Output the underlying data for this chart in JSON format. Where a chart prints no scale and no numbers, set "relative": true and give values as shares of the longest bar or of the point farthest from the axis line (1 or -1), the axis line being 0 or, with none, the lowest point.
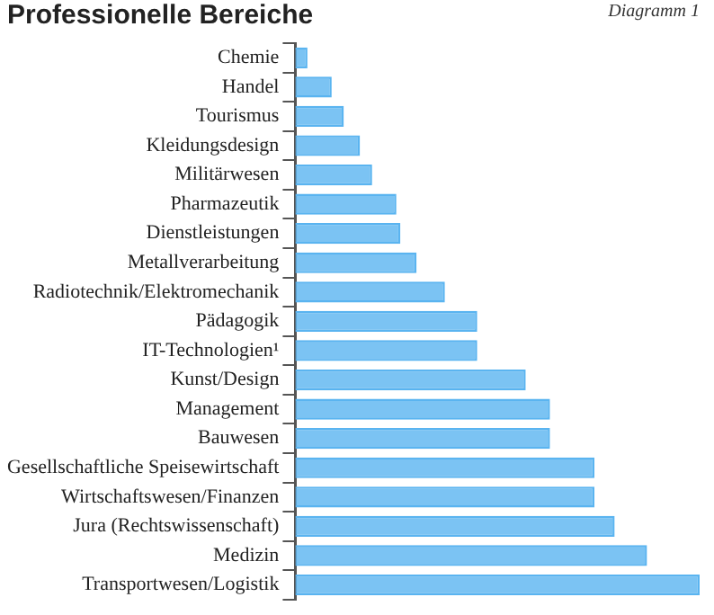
{
  "chart_data": {
    "type": "bar",
    "orientation": "horizontal",
    "relative": true,
    "title": "Professionelle Bereiche",
    "annotations": [
      "Diagramm 1"
    ],
    "categories": [
      "Chemie",
      "Handel",
      "Tourismus",
      "Kleidungsdesign",
      "Militärwesen",
      "Pharmazeutik",
      "Dienstleistungen",
      "Metallverarbeitung",
      "Radiotechnik/Elektromechanik",
      "Pädagogik",
      "IT-Technologien¹",
      "Kunst/Design",
      "Management",
      "Bauwesen",
      "Gesellschaftliche Speisewirtschaft",
      "Wirtschaftswesen/Finanzen",
      "Jura (Rechtswissenschaft)",
      "Medizin",
      "Transportwesen/Logistik"
    ],
    "values": [
      0.03,
      0.09,
      0.12,
      0.16,
      0.19,
      0.25,
      0.26,
      0.3,
      0.37,
      0.45,
      0.45,
      0.57,
      0.63,
      0.63,
      0.74,
      0.74,
      0.79,
      0.87,
      1
    ],
    "color": "#5ab4f0",
    "legend": false
  }
}
